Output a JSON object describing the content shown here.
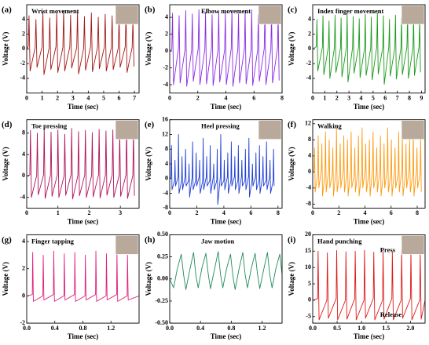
{
  "chart_data": [
    {
      "type": "line",
      "panel": "(a)",
      "title": "Wrist movement",
      "xlabel": "Time (sec)",
      "ylabel": "Voltage (V)",
      "color": "#a31515",
      "photo": true,
      "xlim": [
        0,
        7.3
      ],
      "xticks": [
        0,
        1,
        2,
        3,
        4,
        5,
        6,
        7
      ],
      "ylim": [
        -6,
        6
      ],
      "yticks": [
        -4,
        -2,
        0,
        2,
        4
      ],
      "x": [
        0,
        0.1,
        0.15,
        0.22,
        0.55,
        0.6,
        0.67,
        1,
        1.05,
        1.12,
        1.45,
        1.5,
        1.57,
        1.9,
        1.95,
        2.02,
        2.35,
        2.4,
        2.47,
        2.8,
        2.85,
        2.92,
        3.25,
        3.3,
        3.37,
        3.7,
        3.75,
        3.82,
        4.15,
        4.2,
        4.27,
        4.6,
        4.65,
        4.72,
        5.05,
        5.1,
        5.17,
        5.5,
        5.55,
        5.62,
        5.95,
        6,
        6.07,
        6.4,
        6.45,
        6.52,
        6.85,
        6.9,
        6.97
      ],
      "values": [
        0,
        0.3,
        4.5,
        -3,
        0.2,
        4,
        -2.5,
        0.3,
        5,
        -3.5,
        0.1,
        4.2,
        -2.8,
        0.3,
        4.8,
        -3.2,
        0.2,
        5.2,
        -3,
        0.3,
        4.6,
        -2.6,
        0.2,
        5,
        -3.4,
        0.1,
        4.4,
        -2.9,
        0.3,
        4.9,
        -3.1,
        0.2,
        4.3,
        -2.7,
        0.3,
        4.7,
        -3,
        0.2,
        4.5,
        -2.8,
        0.1,
        4,
        -2.5,
        0.3,
        4.6,
        -3.2,
        0.2,
        3.8,
        -2.4
      ]
    },
    {
      "type": "line",
      "panel": "(b)",
      "title": "Elbow movement",
      "xlabel": "Time (sec)",
      "ylabel": "Voltage (V)",
      "color": "#8a2be2",
      "photo": true,
      "xlim": [
        0,
        8
      ],
      "xticks": [
        0,
        2,
        4,
        6,
        8
      ],
      "ylim": [
        -5,
        5.5
      ],
      "yticks": [
        -4,
        -2,
        0,
        2,
        4
      ],
      "x": [
        0,
        0.15,
        0.2,
        0.27,
        0.62,
        0.67,
        0.74,
        1.09,
        1.14,
        1.21,
        1.56,
        1.61,
        1.68,
        2.03,
        2.08,
        2.15,
        2.5,
        2.55,
        2.62,
        2.97,
        3.02,
        3.09,
        3.44,
        3.49,
        3.56,
        3.91,
        3.96,
        4.03,
        4.38,
        4.43,
        4.5,
        4.85,
        4.9,
        4.97,
        5.32,
        5.37,
        5.44,
        5.79,
        5.84,
        5.91,
        6.26,
        6.31,
        6.38,
        6.73,
        6.78,
        6.85,
        7.2,
        7.25,
        7.32,
        7.67,
        7.72,
        7.79
      ],
      "values": [
        0,
        0.2,
        4.5,
        -4,
        0.3,
        4.2,
        -3.8,
        0.2,
        4.8,
        -4.2,
        0.1,
        4.4,
        -3.6,
        0.3,
        4.9,
        -4,
        0.2,
        4.6,
        -3.9,
        0.3,
        4.3,
        -4.1,
        0.2,
        4.7,
        -3.7,
        0.1,
        4.5,
        -4,
        0.3,
        4.8,
        -4.2,
        0.2,
        4.4,
        -3.8,
        0.3,
        4.6,
        -3.9,
        0.2,
        4.9,
        -4.1,
        0.1,
        4.3,
        -3.6,
        0.3,
        4.7,
        -4,
        0.2,
        4.5,
        -3.8,
        0.3,
        4.2,
        -3.5
      ]
    },
    {
      "type": "line",
      "panel": "(c)",
      "title": "Index finger movement",
      "xlabel": "Time (sec)",
      "ylabel": "Voltage (V)",
      "color": "#1a9a1a",
      "photo": true,
      "xlim": [
        0,
        9.3
      ],
      "xticks": [
        0,
        1,
        2,
        3,
        4,
        5,
        6,
        7,
        8,
        9
      ],
      "ylim": [
        -6,
        6
      ],
      "yticks": [
        -4,
        -2,
        0,
        2,
        4
      ],
      "x": [
        0,
        0.3,
        0.35,
        0.42,
        0.8,
        0.85,
        0.92,
        1.3,
        1.35,
        1.42,
        1.8,
        1.85,
        1.92,
        2.3,
        2.35,
        2.42,
        2.8,
        2.85,
        2.92,
        3.3,
        3.35,
        3.42,
        3.8,
        3.85,
        3.92,
        4.3,
        4.35,
        4.42,
        4.8,
        4.85,
        4.92,
        5.3,
        5.35,
        5.42,
        5.8,
        5.85,
        5.92,
        6.3,
        6.35,
        6.42,
        6.8,
        6.85,
        6.92,
        7.3,
        7.35,
        7.42,
        7.8,
        7.85,
        7.92,
        8.3,
        8.35,
        8.42,
        8.8,
        8.85,
        8.92
      ],
      "values": [
        0,
        0.3,
        4,
        -3,
        0.2,
        4.5,
        -3.5,
        0.3,
        3.8,
        -4,
        0.2,
        4.6,
        -3.2,
        0.1,
        4.2,
        -3.8,
        0.3,
        4.8,
        -4.5,
        0.2,
        4.4,
        -3.3,
        0.3,
        4.1,
        -3.9,
        0.2,
        4.7,
        -3.6,
        0.1,
        4.3,
        -4.2,
        0.3,
        4.9,
        -3.4,
        0.2,
        4.5,
        -4.8,
        0.3,
        4,
        -3.7,
        0.2,
        4.6,
        -4.1,
        0.1,
        4.2,
        -3.5,
        0.3,
        4.8,
        -4,
        0.2,
        4.4,
        -3.6,
        0.3,
        4.1,
        -3.2
      ]
    },
    {
      "type": "line",
      "panel": "(d)",
      "title": "Toe pressing",
      "xlabel": "Time (sec)",
      "ylabel": "Voltage (V)",
      "color": "#b0105a",
      "photo": true,
      "xlim": [
        0,
        3.6
      ],
      "xticks": [
        0,
        1,
        2,
        3
      ],
      "ylim": [
        -6,
        10.5
      ],
      "yticks": [
        -4,
        0,
        4,
        8
      ],
      "x": [
        0,
        0.1,
        0.12,
        0.15,
        0.32,
        0.34,
        0.37,
        0.54,
        0.56,
        0.59,
        0.76,
        0.78,
        0.81,
        0.98,
        1,
        1.03,
        1.2,
        1.22,
        1.25,
        1.42,
        1.44,
        1.47,
        1.64,
        1.66,
        1.69,
        1.86,
        1.88,
        1.91,
        2.08,
        2.1,
        2.13,
        2.3,
        2.32,
        2.35,
        2.52,
        2.54,
        2.57,
        2.74,
        2.76,
        2.79,
        2.96,
        2.98,
        3.01,
        3.18,
        3.2,
        3.23,
        3.4,
        3.42,
        3.45
      ],
      "values": [
        0,
        0.2,
        8.5,
        -4,
        0.1,
        8,
        -3.5,
        0.2,
        8.8,
        -4.2,
        0.1,
        8.2,
        -3.8,
        0.2,
        8.6,
        -4,
        0.1,
        7.8,
        -3.6,
        0.2,
        8.9,
        -4.3,
        0.1,
        8.3,
        -3.7,
        0.2,
        8.5,
        -4,
        0.1,
        8.1,
        -3.9,
        0.2,
        8.7,
        -4.1,
        0.1,
        8.4,
        -3.6,
        0.2,
        8.6,
        -4,
        0.1,
        8,
        -3.8,
        0.2,
        8.8,
        -4.2,
        0.1,
        8.3,
        -3.7
      ]
    },
    {
      "type": "line",
      "panel": "(e)",
      "title": "Heel pressing",
      "xlabel": "Time (sec)",
      "ylabel": "Voltage (V)",
      "color": "#1f3fd6",
      "photo": true,
      "xlim": [
        0,
        8.3
      ],
      "xticks": [
        0,
        2,
        4,
        6,
        8
      ],
      "ylim": [
        -8,
        16
      ],
      "yticks": [
        -8,
        -4,
        0,
        4,
        8,
        12,
        16
      ],
      "x": [
        0,
        0.1,
        0.13,
        0.17,
        0.36,
        0.39,
        0.43,
        0.62,
        0.65,
        0.69,
        0.88,
        0.91,
        0.95,
        1.14,
        1.17,
        1.21,
        1.4,
        1.43,
        1.47,
        1.66,
        1.69,
        1.73,
        1.92,
        1.95,
        1.99,
        2.18,
        2.21,
        2.25,
        2.44,
        2.47,
        2.51,
        2.7,
        2.73,
        2.77,
        2.96,
        2.99,
        3.03,
        3.22,
        3.25,
        3.29,
        3.48,
        3.51,
        3.55,
        3.74,
        3.77,
        3.81,
        4,
        4.03,
        4.07,
        4.26,
        4.29,
        4.33,
        4.52,
        4.55,
        4.59,
        4.78,
        4.81,
        4.85,
        5.04,
        5.07,
        5.11,
        5.3,
        5.33,
        5.37,
        5.56,
        5.59,
        5.63,
        5.82,
        5.85,
        5.89,
        6.08,
        6.11,
        6.15,
        6.34,
        6.37,
        6.41,
        6.6,
        6.63,
        6.67,
        6.86,
        6.89,
        6.93,
        7.12,
        7.15,
        7.19,
        7.38,
        7.41,
        7.45,
        7.64,
        7.67,
        7.71
      ],
      "values": [
        0,
        0.5,
        9,
        -3,
        -0.5,
        5,
        -2,
        0.5,
        12,
        -4,
        -0.5,
        6,
        -3,
        0.5,
        8,
        -2,
        -0.5,
        4,
        -5,
        0.5,
        10,
        -3,
        -0.5,
        7,
        -2,
        0.5,
        5,
        -4,
        -0.5,
        11,
        -3,
        0.5,
        6,
        -2,
        -0.5,
        9,
        -4,
        0.5,
        4,
        -3,
        -0.5,
        8,
        -7,
        0.5,
        12,
        -2,
        -0.5,
        5,
        -3,
        0.5,
        7,
        -4,
        -0.5,
        10,
        -2,
        0.5,
        6,
        -3,
        -0.5,
        9,
        -4,
        0.5,
        5,
        -2,
        -0.5,
        8,
        -3,
        0.5,
        11,
        -5,
        -0.5,
        4,
        -2,
        0.5,
        7,
        -3,
        -0.5,
        9,
        -4,
        0.5,
        6,
        -2,
        -0.5,
        10,
        -3,
        0.5,
        5,
        -4,
        -0.5,
        8,
        -2
      ]
    },
    {
      "type": "line",
      "panel": "(f)",
      "title": "Walking",
      "xlabel": "Time (sec)",
      "ylabel": "Voltage (V)",
      "color": "#ff9a10",
      "photo": true,
      "xlim": [
        0,
        8.6
      ],
      "xticks": [
        0,
        2,
        4,
        6,
        8
      ],
      "ylim": [
        -9,
        13
      ],
      "yticks": [
        -8,
        -4,
        0,
        4,
        8,
        12
      ],
      "x": [
        0,
        0.1,
        0.14,
        0.19,
        0.38,
        0.42,
        0.47,
        0.66,
        0.7,
        0.75,
        0.94,
        0.98,
        1.03,
        1.22,
        1.26,
        1.31,
        1.5,
        1.54,
        1.59,
        1.78,
        1.82,
        1.87,
        2.06,
        2.1,
        2.15,
        2.34,
        2.38,
        2.43,
        2.62,
        2.66,
        2.71,
        2.9,
        2.94,
        2.99,
        3.18,
        3.22,
        3.27,
        3.46,
        3.5,
        3.55,
        3.74,
        3.78,
        3.83,
        4.02,
        4.06,
        4.11,
        4.3,
        4.34,
        4.39,
        4.58,
        4.62,
        4.67,
        4.86,
        4.9,
        4.95,
        5.14,
        5.18,
        5.23,
        5.42,
        5.46,
        5.51,
        5.7,
        5.74,
        5.79,
        5.98,
        6.02,
        6.07,
        6.26,
        6.3,
        6.35,
        6.54,
        6.58,
        6.63,
        6.82,
        6.86,
        6.91,
        7.1,
        7.14,
        7.19,
        7.38,
        7.42,
        7.47,
        7.66,
        7.7,
        7.75,
        7.94,
        7.98,
        8.03,
        8.22,
        8.26,
        8.31
      ],
      "values": [
        0,
        0.5,
        6,
        -5,
        -0.5,
        9,
        -4,
        0.5,
        7,
        -6,
        -0.5,
        10,
        -5,
        0.5,
        8,
        -4,
        -0.5,
        6,
        -6,
        0.5,
        11,
        -5,
        -0.5,
        7,
        -4,
        0.5,
        9,
        -5,
        -0.5,
        8,
        -6,
        0.5,
        10,
        -4,
        -0.5,
        6,
        -5,
        0.5,
        9,
        -6,
        -0.5,
        11,
        -4,
        0.5,
        7,
        -5,
        -0.5,
        8,
        -6,
        0.5,
        10,
        -4,
        -0.5,
        6,
        -5,
        0.5,
        9,
        -6,
        -0.5,
        7,
        -4,
        0.5,
        11,
        -5,
        -0.5,
        8,
        -6,
        0.5,
        6,
        -4,
        -0.5,
        10,
        -5,
        0.5,
        9,
        -6,
        -0.5,
        7,
        -4,
        0.5,
        8,
        -5,
        -0.5,
        10,
        -6,
        0.5,
        6,
        -4,
        -0.5,
        9,
        -5
      ]
    },
    {
      "type": "line",
      "panel": "(g)",
      "title": "Finger tapping",
      "xlabel": "Time (sec)",
      "ylabel": "Voltage (V)",
      "color": "#e0207a",
      "photo": true,
      "xlim": [
        0,
        1.6
      ],
      "xticks": [
        {
          "value": 0,
          "label": "0.0"
        },
        0.4,
        0.8,
        1.2
      ],
      "ylim": [
        -2,
        4.5
      ],
      "yticks": [
        -2,
        0,
        2,
        4
      ],
      "x": [
        0,
        0.08,
        0.085,
        0.095,
        0.23,
        0.235,
        0.245,
        0.38,
        0.385,
        0.395,
        0.53,
        0.535,
        0.545,
        0.68,
        0.685,
        0.695,
        0.83,
        0.835,
        0.845,
        0.98,
        0.985,
        0.995,
        1.13,
        1.135,
        1.145,
        1.28,
        1.285,
        1.295,
        1.43,
        1.435,
        1.445,
        1.6
      ],
      "values": [
        0,
        0.1,
        3.2,
        -0.4,
        0,
        3,
        -0.3,
        0.1,
        3.3,
        -0.4,
        0,
        3.1,
        -0.3,
        0.1,
        3.2,
        -0.4,
        0,
        3,
        -0.3,
        0.1,
        3.3,
        -0.4,
        0,
        3.1,
        -0.3,
        0.1,
        3.2,
        -0.4,
        0,
        3,
        -0.3,
        0
      ]
    },
    {
      "type": "line",
      "panel": "(h)",
      "title": "Jaw motion",
      "xlabel": "Time (sec)",
      "ylabel": "Voltage (V)",
      "color": "#208a5a",
      "photo": false,
      "xlim": [
        0,
        1.46
      ],
      "xticks": [
        {
          "value": 0,
          "label": "0.0"
        },
        0.4,
        0.8,
        1.2
      ],
      "ylim": [
        -0.5,
        0.5
      ],
      "yticks": [
        {
          "value": -0.5,
          "label": "-0.50"
        },
        {
          "value": -0.25,
          "label": "-0.25"
        },
        {
          "value": 0,
          "label": "0.00"
        },
        {
          "value": 0.25,
          "label": "0.25"
        },
        {
          "value": 0.5,
          "label": "0.50"
        }
      ],
      "x": [
        0,
        0.05,
        0.1,
        0.15,
        0.18,
        0.21,
        0.26,
        0.31,
        0.34,
        0.37,
        0.42,
        0.47,
        0.5,
        0.53,
        0.58,
        0.63,
        0.66,
        0.69,
        0.74,
        0.79,
        0.82,
        0.85,
        0.9,
        0.95,
        0.98,
        1.01,
        1.06,
        1.11,
        1.14,
        1.17,
        1.22,
        1.27,
        1.3,
        1.33,
        1.38,
        1.43,
        1.46
      ],
      "values": [
        0,
        -0.1,
        0.12,
        0.28,
        0.05,
        -0.12,
        0.1,
        0.3,
        0.04,
        -0.1,
        0.13,
        0.29,
        0.06,
        -0.11,
        0.1,
        0.31,
        0.05,
        -0.1,
        0.12,
        0.28,
        0.04,
        -0.12,
        0.11,
        0.3,
        0.05,
        -0.1,
        0.12,
        0.29,
        0.06,
        -0.11,
        0.1,
        0.3,
        0.05,
        -0.1,
        0.12,
        0.28,
        0.05
      ]
    },
    {
      "type": "line",
      "panel": "(i)",
      "title": "Hand punching",
      "xlabel": "Time (sec)",
      "ylabel": "Voltage (V)",
      "color": "#e01818",
      "photo": true,
      "annotations": [
        "Press",
        "Release"
      ],
      "xlim": [
        0,
        2.3
      ],
      "xticks": [
        {
          "value": 0,
          "label": "0.0"
        },
        {
          "value": 0.5,
          "label": "0.5"
        },
        {
          "value": 1,
          "label": "1.0"
        },
        {
          "value": 1.5,
          "label": "1.5"
        },
        {
          "value": 2,
          "label": "2.0"
        }
      ],
      "ylim": [
        -7,
        20
      ],
      "yticks": [
        -5,
        0,
        5,
        10,
        15,
        20
      ],
      "x": [
        0,
        0.1,
        0.11,
        0.13,
        0.29,
        0.3,
        0.32,
        0.48,
        0.49,
        0.51,
        0.67,
        0.68,
        0.7,
        0.86,
        0.87,
        0.89,
        1.05,
        1.06,
        1.08,
        1.24,
        1.25,
        1.27,
        1.43,
        1.44,
        1.46,
        1.62,
        1.63,
        1.65,
        1.81,
        1.82,
        1.84,
        2,
        2.01,
        2.03,
        2.19,
        2.2,
        2.22,
        2.3
      ],
      "values": [
        0,
        0.5,
        15,
        -6,
        0,
        14.5,
        -5.5,
        0.5,
        15.2,
        -6,
        0,
        14.8,
        -5.8,
        0.5,
        15,
        -6,
        0,
        15.3,
        -5.5,
        0.5,
        14.7,
        -6,
        0,
        15.1,
        -5.8,
        0.5,
        14.9,
        -6,
        0,
        15.2,
        -5.5,
        0.5,
        14.8,
        -6,
        0,
        15,
        -5.8,
        0
      ]
    }
  ]
}
